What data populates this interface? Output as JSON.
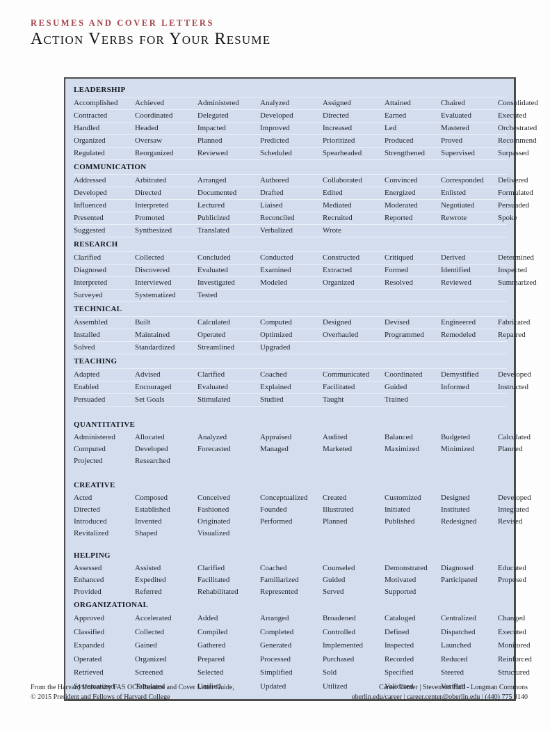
{
  "header": {
    "eyebrow": "RESUMES AND COVER LETTERS",
    "title": "Action Verbs for Your Resume"
  },
  "colors": {
    "accent_red": "#a6454c",
    "table_bg": "#d3ddee"
  },
  "table": {
    "sections": [
      {
        "name": "LEADERSHIP",
        "verbs": [
          "Accomplished",
          "Achieved",
          "Administered",
          "Analyzed",
          "Assigned",
          "Attained",
          "Chaired",
          "Consolidated",
          "Contracted",
          "Coordinated",
          "Delegated",
          "Developed",
          "Directed",
          "Earned",
          "Evaluated",
          "Executed",
          "Handled",
          "Headed",
          "Impacted",
          "Improved",
          "Increased",
          "Led",
          "Mastered",
          "Orchestrated",
          "Organized",
          "Oversaw",
          "Planned",
          "Predicted",
          "Prioritized",
          "Produced",
          "Proved",
          "Recommend",
          "Regulated",
          "Reorganized",
          "Reviewed",
          "Scheduled",
          "Spearheaded",
          "Strengthened",
          "Supervised",
          "Surpassed"
        ]
      },
      {
        "name": "COMMUNICATION",
        "verbs": [
          "Addressed",
          "Arbitrated",
          "Arranged",
          "Authored",
          "Collaborated",
          "Convinced",
          "Corresponded",
          "Delivered",
          "Developed",
          "Directed",
          "Documented",
          "Drafted",
          "Edited",
          "Energized",
          "Enlisted",
          "Formulated",
          "Influenced",
          "Interpreted",
          "Lectured",
          "Liaised",
          "Mediated",
          "Moderated",
          "Negotiated",
          "Persuaded",
          "Presented",
          "Promoted",
          "Publicized",
          "Reconciled",
          "Recruited",
          "Reported",
          "Rewrote",
          "Spoke",
          "Suggested",
          "Synthesized",
          "Translated",
          "Verbalized",
          "Wrote"
        ]
      },
      {
        "name": "RESEARCH",
        "verbs": [
          "Clarified",
          "Collected",
          "Concluded",
          "Conducted",
          "Constructed",
          "Critiqued",
          "Derived",
          "Determined",
          "Diagnosed",
          "Discovered",
          "Evaluated",
          "Examined",
          "Extracted",
          "Formed",
          "Identified",
          "Inspected",
          "Interpreted",
          "Interviewed",
          "Investigated",
          "Modeled",
          "Organized",
          "Resolved",
          "Reviewed",
          "Summarized",
          "Surveyed",
          "Systematized",
          "Tested"
        ]
      },
      {
        "name": "TECHNICAL",
        "verbs": [
          "Assembled",
          "Built",
          "Calculated",
          "Computed",
          "Designed",
          "Devised",
          "Engineered",
          "Fabricated",
          "Installed",
          "Maintained",
          "Operated",
          "Optimized",
          "Overhauled",
          "Programmed",
          "Remodeled",
          "Repaired",
          "Solved",
          "Standardized",
          "Streamlined",
          "Upgraded"
        ]
      },
      {
        "name": "TEACHING",
        "verbs": [
          "Adapted",
          "Advised",
          "Clarified",
          "Coached",
          "Communicated",
          "Coordinated",
          "Demystified",
          "Developed",
          "Enabled",
          "Encouraged",
          "Evaluated",
          "Explained",
          "Facilitated",
          "Guided",
          "Informed",
          "Instructed",
          "Persuaded",
          "Set Goals",
          "Stimulated",
          "Studied",
          "Taught",
          "Trained"
        ]
      },
      {
        "name": "QUANTITATIVE",
        "verbs": [
          "Administered",
          "Allocated",
          "Analyzed",
          "Appraised",
          "Audited",
          "Balanced",
          "Budgeted",
          "Calculated",
          "Computed",
          "Developed",
          "Forecasted",
          "Managed",
          "Marketed",
          "Maximized",
          "Minimized",
          "Planned",
          "Projected",
          "Researched"
        ]
      },
      {
        "name": "CREATIVE",
        "verbs": [
          "Acted",
          "Composed",
          "Conceived",
          "Conceptualized",
          "Created",
          "Customized",
          "Designed",
          "Developed",
          "Directed",
          "Established",
          "Fashioned",
          "Founded",
          "Illustrated",
          "Initiated",
          "Instituted",
          "Integrated",
          "Introduced",
          "Invented",
          "Originated",
          "Performed",
          "Planned",
          "Published",
          "Redesigned",
          "Revised",
          "Revitalized",
          "Shaped",
          "Visualized"
        ]
      },
      {
        "name": "HELPING",
        "verbs": [
          "Assessed",
          "Assisted",
          "Clarified",
          "Coached",
          "Counseled",
          "Demonstrated",
          "Diagnosed",
          "Educated",
          "Enhanced",
          "Expedited",
          "Facilitated",
          "Familiarized",
          "Guided",
          "Motivated",
          "Participated",
          "Proposed",
          "Provided",
          "Referred",
          "Rehabilitated",
          "Represented",
          "Served",
          "Supported"
        ]
      },
      {
        "name": "ORGANIZATIONAL",
        "verbs": [
          "Approved",
          "Accelerated",
          "Added",
          "Arranged",
          "Broadened",
          "Cataloged",
          "Centralized",
          "Changed",
          "Classified",
          "Collected",
          "Compiled",
          "Completed",
          "Controlled",
          "Defined",
          "Dispatched",
          "Executed",
          "Expanded",
          "Gained",
          "Gathered",
          "Generated",
          "Implemented",
          "Inspected",
          "Launched",
          "Monitored",
          "Operated",
          "Organized",
          "Prepared",
          "Processed",
          "Purchased",
          "Recorded",
          "Reduced",
          "Reinforced",
          "Retrieved",
          "Screened",
          "Selected",
          "Simplified",
          "Sold",
          "Specified",
          "Steered",
          "Structured",
          "Systematized",
          "Tabulated",
          "Unified",
          "Updated",
          "Utilized",
          "Validated",
          "Verified"
        ]
      }
    ]
  },
  "footer": {
    "left": [
      "From the Harvard University FAS OCS Resume and Cover Letter Guide,",
      "© 2015 President and Fellows of Harvard College"
    ],
    "right": [
      "Career Center | Stevenson Hall - Longman Commons",
      "oberlin.edu/career | career.center@oberlin.edu | (440) 775 8140"
    ]
  }
}
